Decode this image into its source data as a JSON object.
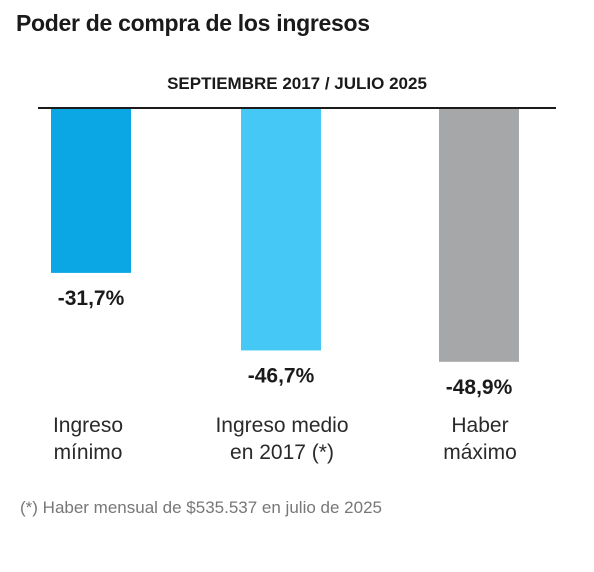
{
  "header": {
    "title": "Poder de compra de los ingresos",
    "subtitle": "SEPTIEMBRE 2017 / JULIO 2025"
  },
  "footnote": "(*) Haber mensual de $535.537 en julio de 2025",
  "chart_data": {
    "type": "bar",
    "orientation": "vertical",
    "categories": [
      [
        "Ingreso",
        "mínimo"
      ],
      [
        "Ingreso medio",
        "en 2017 (*)"
      ],
      [
        "Haber",
        "máximo"
      ]
    ],
    "values": [
      -31.7,
      -46.7,
      -48.9
    ],
    "value_labels": [
      "-31,7%",
      "-46,7%",
      "-48,9%"
    ],
    "colors": [
      "#0aa7e4",
      "#45c8f5",
      "#a6a7a9"
    ],
    "ylim": [
      -50,
      0
    ],
    "grid": false,
    "legend": "none"
  }
}
